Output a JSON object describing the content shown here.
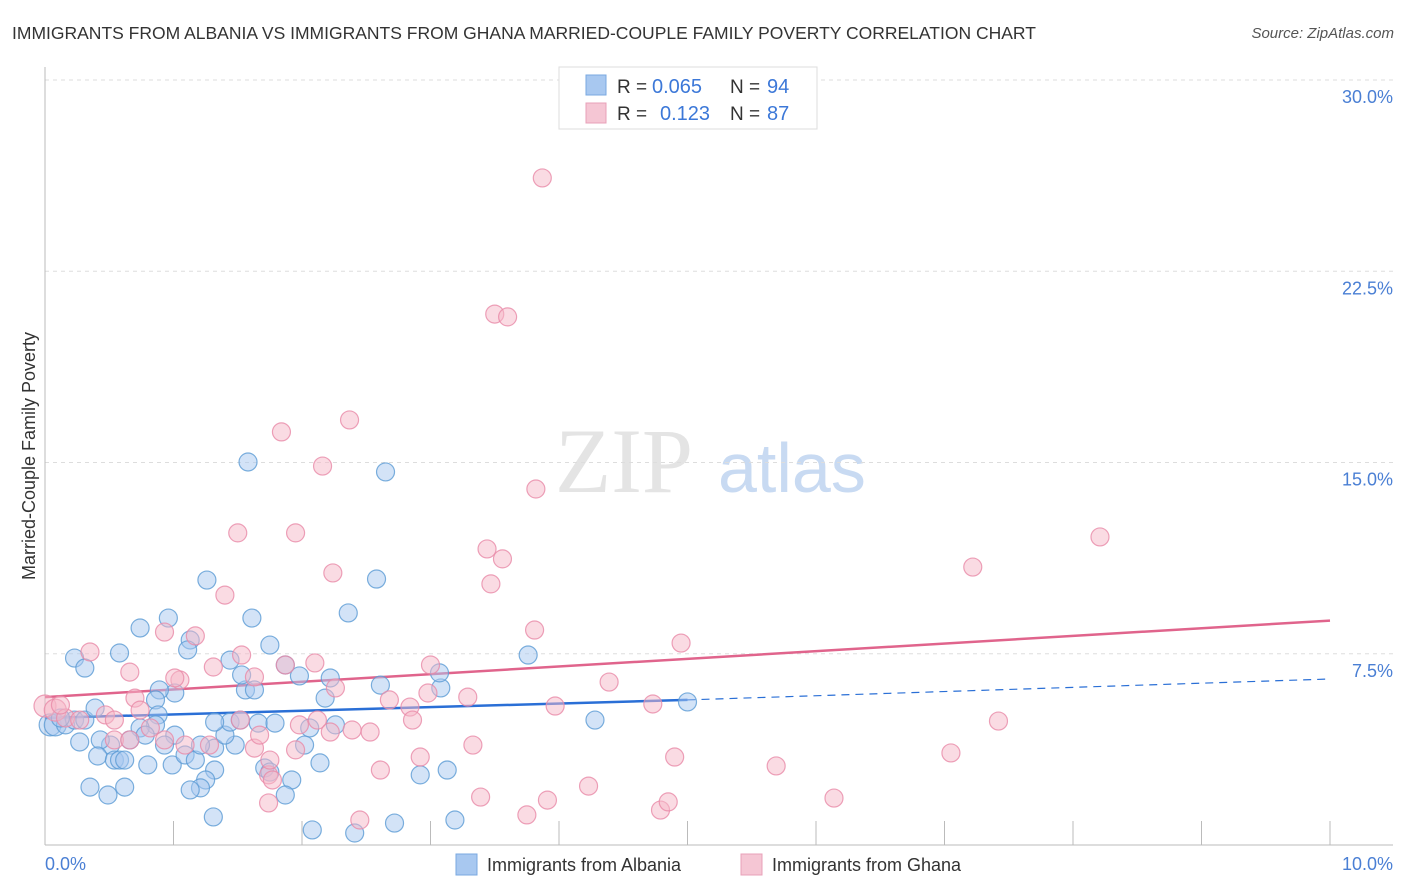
{
  "title": "IMMIGRANTS FROM ALBANIA VS IMMIGRANTS FROM GHANA MARRIED-COUPLE FAMILY POVERTY CORRELATION CHART",
  "source": "Source: ZipAtlas.com",
  "watermark": "ZIPatlas",
  "colors": {
    "albania": "#5b9bd5",
    "albania_fill": "#a8c8f0",
    "ghana": "#e88aa8",
    "ghana_fill": "#f5b8c8",
    "albania_line": "#2a6fd6",
    "ghana_line": "#e0648c",
    "axis_text": "#4a7fd4"
  },
  "legend_top": [
    {
      "r_label": "R =",
      "r_value": "0.065",
      "n_label": "N =",
      "n_value": "94"
    },
    {
      "r_label": "R =",
      "r_value": "0.123",
      "n_label": "N =",
      "n_value": "87"
    }
  ],
  "chart_data": {
    "type": "scatter",
    "title": "IMMIGRANTS FROM ALBANIA VS IMMIGRANTS FROM GHANA MARRIED-COUPLE FAMILY POVERTY CORRELATION CHART",
    "xlabel": "",
    "ylabel": "Married-Couple Family Poverty",
    "xlim": [
      0,
      10
    ],
    "ylim": [
      0,
      30
    ],
    "x_tick_labels": [
      "0.0%",
      "10.0%"
    ],
    "y_ticks": [
      7.5,
      15,
      22.5,
      30
    ],
    "y_tick_labels": [
      "7.5%",
      "15.0%",
      "22.5%",
      "30.0%"
    ],
    "grid": true,
    "legend_placement": "bottom",
    "series": [
      {
        "name": "Immigrants from Albania",
        "trend": {
          "x": [
            0,
            5,
            10
          ],
          "y": [
            4.98,
            5.69,
            6.51
          ],
          "solid_until": 5
        },
        "points": [
          [
            0.04,
            4.71
          ],
          [
            0.08,
            4.71
          ],
          [
            0.16,
            4.71
          ],
          [
            0.23,
            4.9
          ],
          [
            0.31,
            4.9
          ],
          [
            0.12,
            4.98
          ],
          [
            0.39,
            5.37
          ],
          [
            0.23,
            7.33
          ],
          [
            0.31,
            6.94
          ],
          [
            0.58,
            7.53
          ],
          [
            0.74,
            8.51
          ],
          [
            0.96,
            8.9
          ],
          [
            1.13,
            8.04
          ],
          [
            1.11,
            7.65
          ],
          [
            1.01,
            5.96
          ],
          [
            0.89,
            6.08
          ],
          [
            0.86,
            5.69
          ],
          [
            0.88,
            5.1
          ],
          [
            0.86,
            4.71
          ],
          [
            0.74,
            4.59
          ],
          [
            0.66,
            4.12
          ],
          [
            0.51,
            3.92
          ],
          [
            0.43,
            4.12
          ],
          [
            0.27,
            4.04
          ],
          [
            0.41,
            3.49
          ],
          [
            0.54,
            3.33
          ],
          [
            0.58,
            3.33
          ],
          [
            0.62,
            3.33
          ],
          [
            0.8,
            3.14
          ],
          [
            0.99,
            3.14
          ],
          [
            1.09,
            3.53
          ],
          [
            1.17,
            3.33
          ],
          [
            1.32,
            3.8
          ],
          [
            1.21,
            3.92
          ],
          [
            1.32,
            2.94
          ],
          [
            1.25,
            2.55
          ],
          [
            1.48,
            3.92
          ],
          [
            1.4,
            4.31
          ],
          [
            1.44,
            4.82
          ],
          [
            1.52,
            4.9
          ],
          [
            1.66,
            4.78
          ],
          [
            1.79,
            4.78
          ],
          [
            1.56,
            6.08
          ],
          [
            1.63,
            6.08
          ],
          [
            1.44,
            7.25
          ],
          [
            1.53,
            6.67
          ],
          [
            1.75,
            7.84
          ],
          [
            1.87,
            7.06
          ],
          [
            1.98,
            6.63
          ],
          [
            2.22,
            6.55
          ],
          [
            2.18,
            5.76
          ],
          [
            2.26,
            4.71
          ],
          [
            2.06,
            4.59
          ],
          [
            2.02,
            3.92
          ],
          [
            2.14,
            3.22
          ],
          [
            1.71,
            3.02
          ],
          [
            1.75,
            2.86
          ],
          [
            1.92,
            2.55
          ],
          [
            1.87,
            1.96
          ],
          [
            1.21,
            2.24
          ],
          [
            1.13,
            2.16
          ],
          [
            0.62,
            2.27
          ],
          [
            0.35,
            2.27
          ],
          [
            0.49,
            1.96
          ],
          [
            1.31,
            1.1
          ],
          [
            2.08,
            0.59
          ],
          [
            2.41,
            0.47
          ],
          [
            2.72,
            0.86
          ],
          [
            3.19,
            0.98
          ],
          [
            2.92,
            2.75
          ],
          [
            3.13,
            2.94
          ],
          [
            2.61,
            6.27
          ],
          [
            3.08,
            6.16
          ],
          [
            3.07,
            6.75
          ],
          [
            2.36,
            9.1
          ],
          [
            2.58,
            10.43
          ],
          [
            1.26,
            10.39
          ],
          [
            1.61,
            8.9
          ],
          [
            1.58,
            15.02
          ],
          [
            2.65,
            14.63
          ],
          [
            3.76,
            7.45
          ],
          [
            4.28,
            4.9
          ],
          [
            5.0,
            5.61
          ],
          [
            1.32,
            4.82
          ],
          [
            1.01,
            4.31
          ],
          [
            0.93,
            3.92
          ],
          [
            0.78,
            4.31
          ]
        ]
      },
      {
        "name": "Immigrants from Ghana",
        "trend": {
          "x": [
            0,
            10
          ],
          "y": [
            5.8,
            8.8
          ]
        },
        "points": [
          [
            0.0,
            5.45
          ],
          [
            0.08,
            5.29
          ],
          [
            0.16,
            4.98
          ],
          [
            0.35,
            7.57
          ],
          [
            0.66,
            6.78
          ],
          [
            0.7,
            5.76
          ],
          [
            0.47,
            5.1
          ],
          [
            0.54,
            4.9
          ],
          [
            0.82,
            4.59
          ],
          [
            0.93,
            4.12
          ],
          [
            1.05,
            6.47
          ],
          [
            1.01,
            6.55
          ],
          [
            1.17,
            8.2
          ],
          [
            0.93,
            8.35
          ],
          [
            1.31,
            6.98
          ],
          [
            1.4,
            9.8
          ],
          [
            1.5,
            12.24
          ],
          [
            1.53,
            7.45
          ],
          [
            1.63,
            6.59
          ],
          [
            1.52,
            4.9
          ],
          [
            1.63,
            3.8
          ],
          [
            1.67,
            4.31
          ],
          [
            1.74,
            2.75
          ],
          [
            1.74,
            1.65
          ],
          [
            1.77,
            2.55
          ],
          [
            1.87,
            7.06
          ],
          [
            1.95,
            3.73
          ],
          [
            1.98,
            4.71
          ],
          [
            2.12,
            4.9
          ],
          [
            2.1,
            7.14
          ],
          [
            2.16,
            14.86
          ],
          [
            2.24,
            10.67
          ],
          [
            2.26,
            6.16
          ],
          [
            2.37,
            16.67
          ],
          [
            1.84,
            16.2
          ],
          [
            1.95,
            12.24
          ],
          [
            2.39,
            4.51
          ],
          [
            2.53,
            4.43
          ],
          [
            2.61,
            2.94
          ],
          [
            2.45,
            0.98
          ],
          [
            2.68,
            5.69
          ],
          [
            2.84,
            5.41
          ],
          [
            2.86,
            4.9
          ],
          [
            2.92,
            3.45
          ],
          [
            3.0,
            7.06
          ],
          [
            2.98,
            5.96
          ],
          [
            3.29,
            5.8
          ],
          [
            3.33,
            3.92
          ],
          [
            3.39,
            1.88
          ],
          [
            3.44,
            11.61
          ],
          [
            3.56,
            11.22
          ],
          [
            3.47,
            10.24
          ],
          [
            3.5,
            20.82
          ],
          [
            3.6,
            20.71
          ],
          [
            3.82,
            13.96
          ],
          [
            3.87,
            26.16
          ],
          [
            3.81,
            8.43
          ],
          [
            3.97,
            5.45
          ],
          [
            3.91,
            1.76
          ],
          [
            3.75,
            1.18
          ],
          [
            4.23,
            2.31
          ],
          [
            4.39,
            6.39
          ],
          [
            4.73,
            5.53
          ],
          [
            4.79,
            1.37
          ],
          [
            4.85,
            1.69
          ],
          [
            4.9,
            3.45
          ],
          [
            4.95,
            7.92
          ],
          [
            5.69,
            3.1
          ],
          [
            6.14,
            1.84
          ],
          [
            7.05,
            3.61
          ],
          [
            7.22,
            10.9
          ],
          [
            7.42,
            4.86
          ],
          [
            8.21,
            12.08
          ],
          [
            1.09,
            3.92
          ],
          [
            1.28,
            3.92
          ],
          [
            0.74,
            5.29
          ],
          [
            0.27,
            4.9
          ],
          [
            0.12,
            5.49
          ],
          [
            0.54,
            4.12
          ],
          [
            1.75,
            3.33
          ],
          [
            2.22,
            4.43
          ],
          [
            0.66,
            4.12
          ]
        ]
      }
    ]
  }
}
